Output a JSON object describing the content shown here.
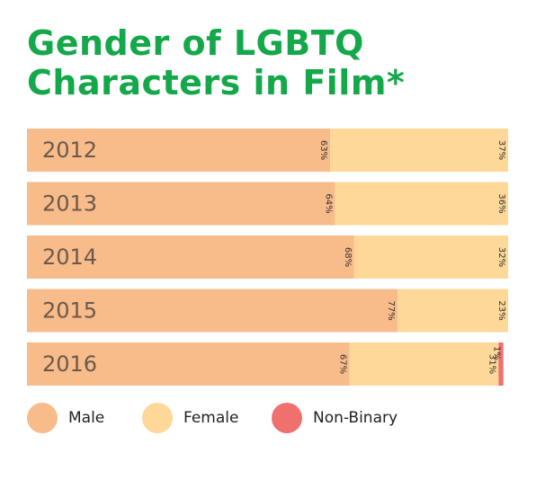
{
  "chart_data": {
    "type": "bar",
    "orientation": "horizontal",
    "stacked": true,
    "title": [
      "Gender of LGBTQ",
      "Characters in Film*"
    ],
    "categories": [
      "2012",
      "2013",
      "2014",
      "2015",
      "2016"
    ],
    "series": [
      {
        "name": "Male",
        "color": "#f8bb8a",
        "values": [
          63,
          64,
          68,
          77,
          67
        ],
        "labels": [
          "63%",
          "64%",
          "68%",
          "77%",
          "67%"
        ]
      },
      {
        "name": "Female",
        "color": "#fdd898",
        "values": [
          37,
          36,
          32,
          23,
          31
        ],
        "labels": [
          "37%",
          "36%",
          "32%",
          "23%",
          "31%"
        ]
      },
      {
        "name": "Non-Binary",
        "color": "#f0706e",
        "values": [
          0,
          0,
          0,
          0,
          1
        ],
        "labels": [
          "",
          "",
          "",
          "",
          "1%"
        ]
      }
    ],
    "xlim": [
      0,
      100
    ],
    "grid": false,
    "legend": "bottom"
  }
}
